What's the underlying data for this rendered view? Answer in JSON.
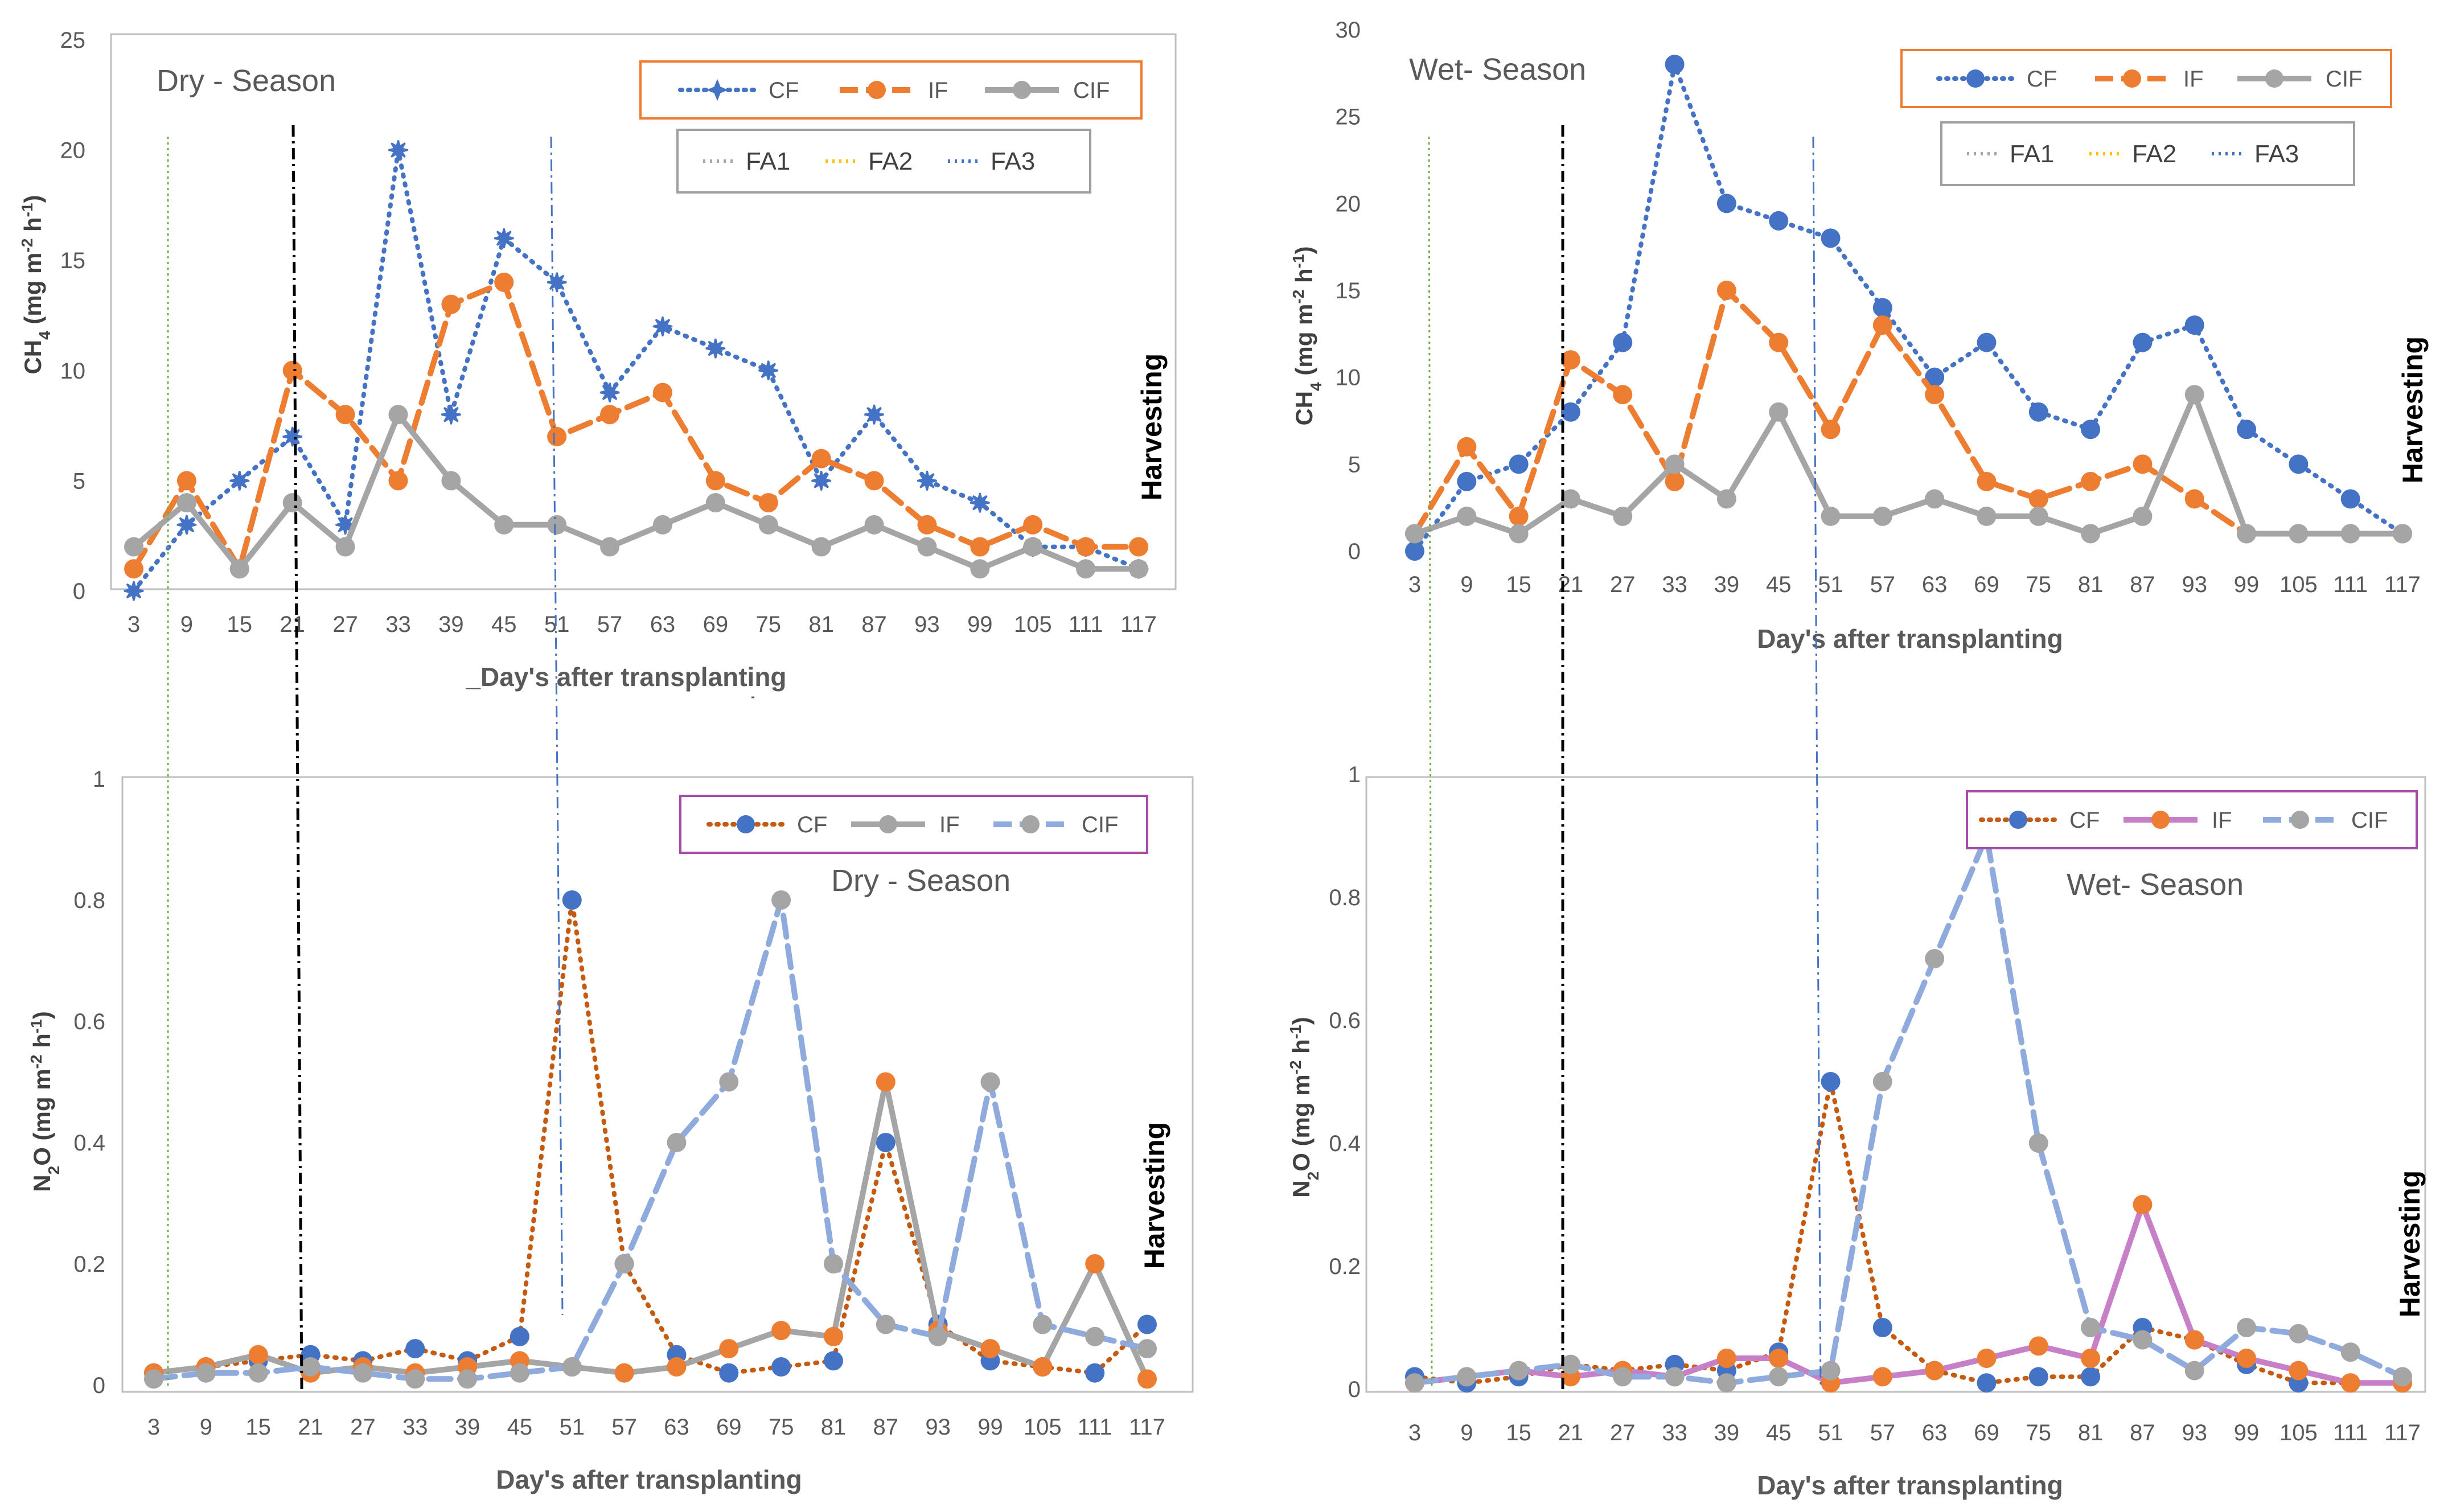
{
  "colors": {
    "cf_blue": "#4472c4",
    "if_orange": "#ed7d31",
    "cif_gray": "#a5a5a5",
    "n2o_cf_line": "#c55a11",
    "n2o_cif_blue": "#8faadc",
    "wet_if_purple": "#c77fc7",
    "fa1": "#a5a5a5",
    "fa2": "#ffc000",
    "fa3": "#4472c4",
    "vline_green": "#70ad47",
    "vline_black": "#000000",
    "vline_blue": "#4472c4",
    "legend_border_orange": "#ed7d31",
    "legend_border_purple": "#a64ca6",
    "legend_border_gray": "#a0a0a0"
  },
  "chart_data": [
    {
      "id": "dry-ch4",
      "type": "line",
      "title": "Dry - Season",
      "xlabel": "_Day's after transplanting",
      "ylabel": "CH4 (mg m-2 h-1)",
      "ylabel_parts": {
        "pre": "CH",
        "sub": "4",
        "mid": " (mg m",
        "sup1": "-2",
        "mid2": " h",
        "sup2": "-1",
        "post": ")"
      },
      "side_label": "Harvesting",
      "ylim": [
        0,
        25
      ],
      "yticks": [
        0,
        5,
        10,
        15,
        20,
        25
      ],
      "categories": [
        "3",
        "9",
        "15",
        "21",
        "27",
        "33",
        "39",
        "45",
        "51",
        "57",
        "63",
        "69",
        "75",
        "81",
        "87",
        "93",
        "99",
        "105",
        "111",
        "117"
      ],
      "series": [
        {
          "name": "CF",
          "values": [
            0,
            3,
            5,
            7,
            3,
            20,
            8,
            16,
            14,
            9,
            12,
            11,
            10,
            5,
            8,
            5,
            4,
            2,
            2,
            1
          ]
        },
        {
          "name": "IF",
          "values": [
            1,
            5,
            1,
            10,
            8,
            5,
            13,
            14,
            7,
            8,
            9,
            5,
            4,
            6,
            5,
            3,
            2,
            3,
            2,
            2
          ]
        },
        {
          "name": "CIF",
          "values": [
            2,
            4,
            1,
            4,
            2,
            8,
            5,
            3,
            3,
            2,
            3,
            4,
            3,
            2,
            3,
            2,
            1,
            2,
            1,
            1
          ]
        }
      ],
      "legend": [
        "CF",
        "IF",
        "CIF"
      ],
      "legend2": [
        "FA1",
        "FA2",
        "FA3"
      ]
    },
    {
      "id": "wet-ch4",
      "type": "line",
      "title": "Wet- Season",
      "xlabel": "Day's after transplanting",
      "ylabel": "CH4 (mg m-2 h-1)",
      "ylabel_parts": {
        "pre": "CH",
        "sub": "4",
        "mid": " (mg m",
        "sup1": "-2",
        "mid2": " h",
        "sup2": "-1",
        "post": ")"
      },
      "side_label": "Harvesting",
      "ylim": [
        0,
        30
      ],
      "yticks": [
        0,
        5,
        10,
        15,
        20,
        25,
        30
      ],
      "categories": [
        "3",
        "9",
        "15",
        "21",
        "27",
        "33",
        "39",
        "45",
        "51",
        "57",
        "63",
        "69",
        "75",
        "81",
        "87",
        "93",
        "99",
        "105",
        "111",
        "117"
      ],
      "series": [
        {
          "name": "CF",
          "values": [
            0,
            4,
            5,
            8,
            12,
            28,
            20,
            19,
            18,
            14,
            10,
            12,
            8,
            7,
            12,
            13,
            7,
            5,
            3,
            1
          ]
        },
        {
          "name": "IF",
          "values": [
            1,
            6,
            2,
            11,
            9,
            4,
            15,
            12,
            7,
            13,
            9,
            4,
            3,
            4,
            5,
            3,
            1,
            1,
            1,
            1
          ]
        },
        {
          "name": "CIF",
          "values": [
            1,
            2,
            1,
            3,
            2,
            5,
            3,
            8,
            2,
            2,
            3,
            2,
            2,
            1,
            2,
            9,
            1,
            1,
            1,
            1
          ]
        }
      ],
      "legend": [
        "CF",
        "IF",
        "CIF"
      ],
      "legend2": [
        "FA1",
        "FA2",
        "FA3"
      ]
    },
    {
      "id": "dry-n2o",
      "type": "line",
      "title": "Dry - Season",
      "xlabel": "Day's after transplanting",
      "ylabel": "N2O (mg m-2 h-1)",
      "ylabel_parts": {
        "pre": "N",
        "sub": "2",
        "mid": "O (mg m",
        "sup1": "-2",
        "mid2": " h",
        "sup2": "-1",
        "post": ")"
      },
      "side_label": "Harvesting",
      "ylim": [
        0,
        1
      ],
      "yticks": [
        0,
        0.2,
        0.4,
        0.6,
        0.8,
        1
      ],
      "categories": [
        "3",
        "9",
        "15",
        "21",
        "27",
        "33",
        "39",
        "45",
        "51",
        "57",
        "63",
        "69",
        "75",
        "81",
        "87",
        "93",
        "99",
        "105",
        "111",
        "117"
      ],
      "series": [
        {
          "name": "CF",
          "values": [
            0.02,
            0.03,
            0.04,
            0.05,
            0.04,
            0.06,
            0.04,
            0.08,
            0.8,
            0.2,
            0.05,
            0.02,
            0.03,
            0.04,
            0.4,
            0.1,
            0.04,
            0.03,
            0.02,
            0.1
          ]
        },
        {
          "name": "IF",
          "values": [
            0.02,
            0.03,
            0.05,
            0.02,
            0.03,
            0.02,
            0.03,
            0.04,
            0.03,
            0.02,
            0.03,
            0.06,
            0.09,
            0.08,
            0.5,
            0.09,
            0.06,
            0.03,
            0.2,
            0.01
          ]
        },
        {
          "name": "CIF",
          "values": [
            0.01,
            0.02,
            0.02,
            0.03,
            0.02,
            0.01,
            0.01,
            0.02,
            0.03,
            0.2,
            0.4,
            0.5,
            0.8,
            0.2,
            0.1,
            0.08,
            0.5,
            0.1,
            0.08,
            0.06
          ]
        }
      ],
      "legend": [
        "CF",
        "IF",
        "CIF"
      ]
    },
    {
      "id": "wet-n2o",
      "type": "line",
      "title": "Wet- Season",
      "xlabel": "Day's after transplanting",
      "ylabel": "N2O (mg m-2 h-1)",
      "ylabel_parts": {
        "pre": "N",
        "sub": "2",
        "mid": "O (mg m",
        "sup1": "-2",
        "mid2": " h",
        "sup2": "-1",
        "post": ")"
      },
      "side_label": "Harvesting",
      "ylim": [
        0,
        1
      ],
      "yticks": [
        0,
        0.2,
        0.4,
        0.6,
        0.8,
        1
      ],
      "categories": [
        "3",
        "9",
        "15",
        "21",
        "27",
        "33",
        "39",
        "45",
        "51",
        "57",
        "63",
        "69",
        "75",
        "81",
        "87",
        "93",
        "99",
        "105",
        "111",
        "117"
      ],
      "series": [
        {
          "name": "CF",
          "values": [
            0.02,
            0.01,
            0.02,
            0.04,
            0.03,
            0.04,
            0.03,
            0.06,
            0.5,
            0.1,
            0.03,
            0.01,
            0.02,
            0.02,
            0.1,
            0.08,
            0.04,
            0.01,
            0.01,
            0.01
          ]
        },
        {
          "name": "IF",
          "values": [
            0.01,
            0.02,
            0.03,
            0.02,
            0.03,
            0.02,
            0.05,
            0.05,
            0.01,
            0.02,
            0.03,
            0.05,
            0.07,
            0.05,
            0.3,
            0.08,
            0.05,
            0.03,
            0.01,
            0.01
          ]
        },
        {
          "name": "CIF",
          "values": [
            0.01,
            0.02,
            0.03,
            0.04,
            0.02,
            0.02,
            0.01,
            0.02,
            0.03,
            0.5,
            0.7,
            0.9,
            0.4,
            0.1,
            0.08,
            0.03,
            0.1,
            0.09,
            0.06,
            0.02
          ]
        }
      ],
      "legend": [
        "CF",
        "IF",
        "CIF"
      ]
    }
  ]
}
